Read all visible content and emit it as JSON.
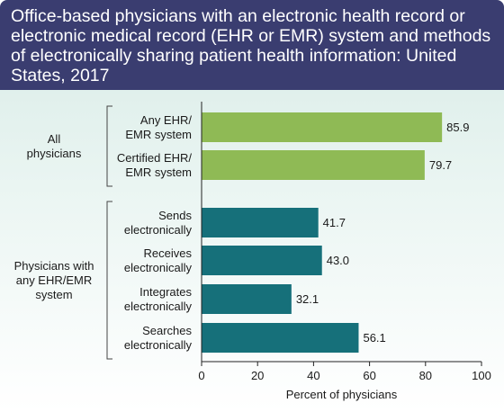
{
  "chart_data": {
    "type": "bar",
    "orientation": "horizontal",
    "title": "Office-based physicians with an electronic health record or electronic medical record (EHR or EMR) system and methods of electronically sharing patient health information: United States, 2017",
    "xlabel": "Percent of physicians",
    "xlim": [
      0,
      100
    ],
    "xticks": [
      "0",
      "20",
      "40",
      "60",
      "80",
      "100"
    ],
    "groups": [
      {
        "label_lines": [
          "All",
          "physicians"
        ],
        "color": "#8fba55",
        "bars": [
          {
            "label_lines": [
              "Any EHR/",
              "EMR system"
            ],
            "value": 85.9,
            "value_label": "85.9"
          },
          {
            "label_lines": [
              "Certified EHR/",
              "EMR system"
            ],
            "value": 79.7,
            "value_label": "79.7"
          }
        ]
      },
      {
        "label_lines": [
          "Physicians with",
          "any EHR/EMR",
          "system"
        ],
        "color": "#16707a",
        "bars": [
          {
            "label_lines": [
              "Sends",
              "electronically"
            ],
            "value": 41.7,
            "value_label": "41.7"
          },
          {
            "label_lines": [
              "Receives",
              "electronically"
            ],
            "value": 43.0,
            "value_label": "43.0"
          },
          {
            "label_lines": [
              "Integrates",
              "electronically"
            ],
            "value": 32.1,
            "value_label": "32.1"
          },
          {
            "label_lines": [
              "Searches",
              "electronically"
            ],
            "value": 56.1,
            "value_label": "56.1"
          }
        ]
      }
    ]
  }
}
